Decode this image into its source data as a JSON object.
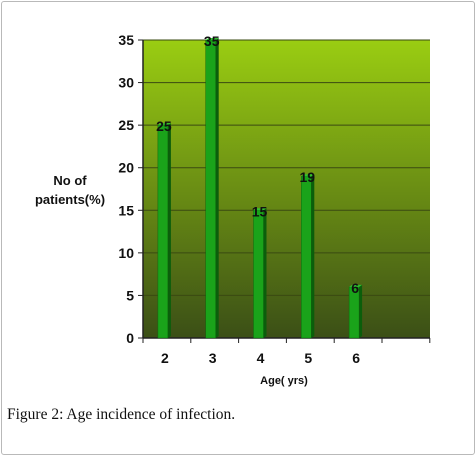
{
  "figure": {
    "caption_label": "Figure 2:",
    "caption_text": " Age incidence of infection."
  },
  "chart_data": {
    "type": "bar",
    "categories": [
      "2",
      "3",
      "4",
      "5",
      "6"
    ],
    "values": [
      25,
      35,
      15,
      19,
      6
    ],
    "data_labels": [
      "25",
      "35",
      "15",
      "19",
      "6"
    ],
    "ylabel": "No of patients(%)",
    "ylabel_lines": [
      "No of",
      "patients(%)"
    ],
    "xlabel": "Age( yrs)",
    "ylim": [
      0,
      35
    ],
    "yticks": [
      0,
      5,
      10,
      15,
      20,
      25,
      30,
      35
    ],
    "grid": true,
    "legend": "none",
    "colors": {
      "plot_top": "#9acd12",
      "plot_bottom": "#3b4f16",
      "bar_face": "#1aa31a",
      "bar_side": "#0b5e0b",
      "grid": "#3a4a12"
    }
  }
}
